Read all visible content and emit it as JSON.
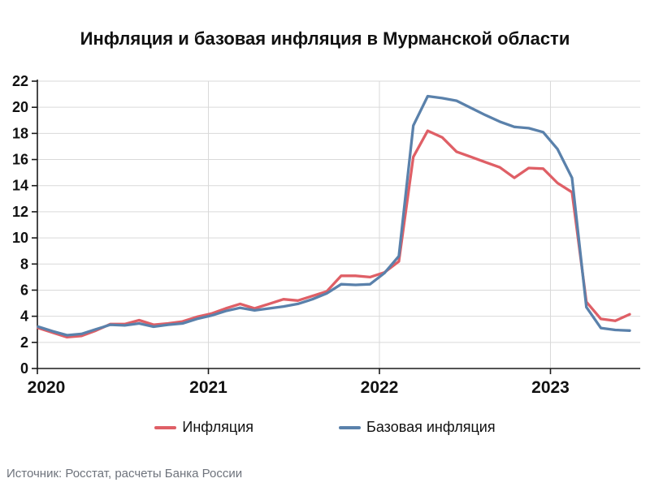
{
  "title": "Инфляция и базовая инфляция в Мурманской области",
  "source": "Источник: Росстат, расчеты Банка России",
  "colors": {
    "inflation": "#df5f66",
    "core_inflation": "#5a81ab",
    "grid": "#d9d9d9",
    "axis": "#1a1a1a",
    "source_text": "#6e737c"
  },
  "chart_data": {
    "type": "line",
    "x_start": "2020-01",
    "x_end": "2023-06",
    "frequency": "monthly",
    "x_tick_labels": [
      "2020",
      "2021",
      "2022",
      "2023"
    ],
    "y_ticks": [
      0,
      2,
      4,
      6,
      8,
      10,
      12,
      14,
      16,
      18,
      20,
      22
    ],
    "ylim": [
      0,
      22
    ],
    "grid": true,
    "legend_position": "bottom",
    "unit": "percent YoY",
    "series": [
      {
        "name": "Инфляция",
        "color": "#df5f66",
        "values": [
          3.1,
          2.75,
          2.4,
          2.5,
          2.9,
          3.4,
          3.4,
          3.7,
          3.35,
          3.45,
          3.6,
          3.95,
          4.2,
          4.6,
          4.95,
          4.6,
          4.95,
          5.3,
          5.2,
          5.55,
          5.9,
          7.1,
          7.1,
          7.0,
          7.35,
          8.2,
          16.2,
          18.2,
          17.7,
          16.6,
          16.2,
          15.8,
          15.4,
          14.6,
          15.35,
          15.3,
          14.2,
          13.5,
          5.1,
          3.8,
          3.65,
          4.15
        ]
      },
      {
        "name": "Базовая инфляция",
        "color": "#5a81ab",
        "values": [
          3.2,
          2.85,
          2.55,
          2.65,
          3.0,
          3.35,
          3.3,
          3.45,
          3.2,
          3.35,
          3.45,
          3.8,
          4.05,
          4.4,
          4.65,
          4.45,
          4.6,
          4.75,
          4.95,
          5.3,
          5.75,
          6.45,
          6.4,
          6.45,
          7.3,
          8.6,
          18.6,
          20.85,
          20.7,
          20.5,
          19.95,
          19.4,
          18.9,
          18.5,
          18.4,
          18.1,
          16.8,
          14.6,
          4.7,
          3.1,
          2.95,
          2.9
        ]
      }
    ]
  }
}
